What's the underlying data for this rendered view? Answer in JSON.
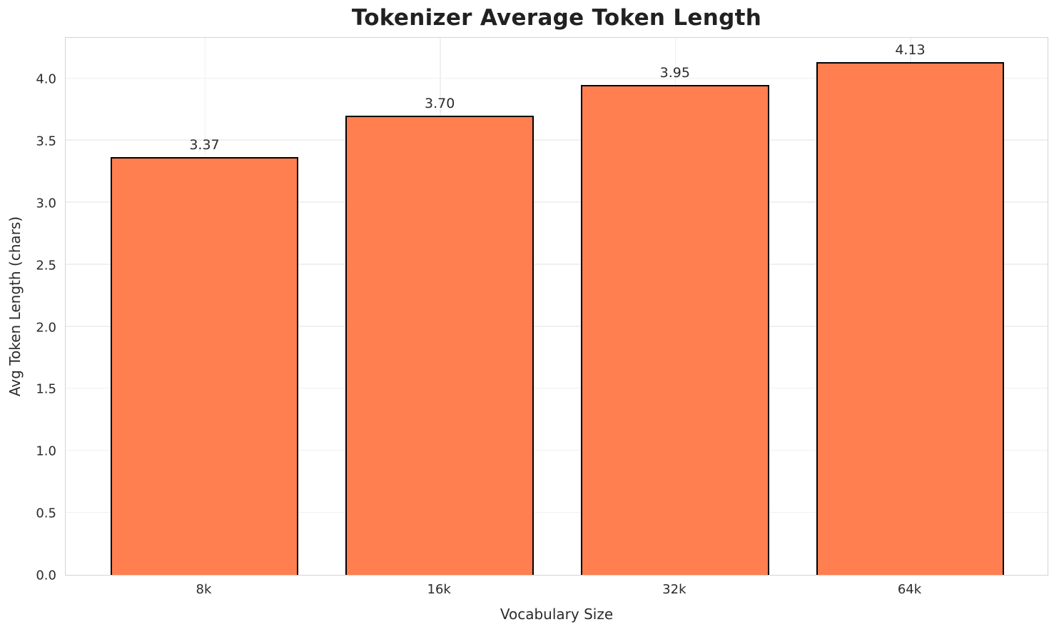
{
  "chart_data": {
    "type": "bar",
    "title": "Tokenizer Average Token Length",
    "xlabel": "Vocabulary Size",
    "ylabel": "Avg Token Length (chars)",
    "categories": [
      "8k",
      "16k",
      "32k",
      "64k"
    ],
    "values": [
      3.37,
      3.7,
      3.95,
      4.13
    ],
    "value_labels": [
      "3.37",
      "3.70",
      "3.95",
      "4.13"
    ],
    "yticks": [
      0.0,
      0.5,
      1.0,
      1.5,
      2.0,
      2.5,
      3.0,
      3.5,
      4.0
    ],
    "ytick_labels": [
      "0.0",
      "0.5",
      "1.0",
      "1.5",
      "2.0",
      "2.5",
      "3.0",
      "3.5",
      "4.0"
    ],
    "ylim": [
      0,
      4.34
    ],
    "grid": true,
    "legend": false,
    "colors": {
      "bar_fill": "#FF7F50",
      "bar_edge": "#000000",
      "grid": "#f0f0f0",
      "spine": "#d4d4d4",
      "text": "#2b2b2b",
      "title_text": "#212121",
      "background": "#ffffff"
    }
  }
}
